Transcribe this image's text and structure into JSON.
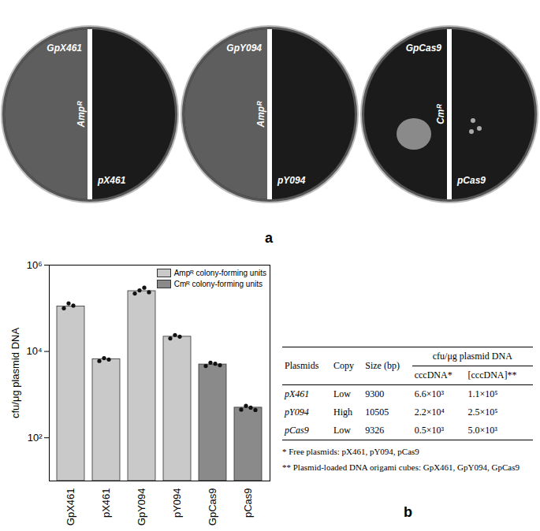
{
  "panel_a": {
    "label": "a",
    "plates": [
      {
        "top": "GpX461",
        "middle": "Ampᴿ",
        "bottom": "pX461"
      },
      {
        "top": "GpY094",
        "middle": "Ampᴿ",
        "bottom": "pY094"
      },
      {
        "top": "GpCas9",
        "middle": "Cmᴿ",
        "bottom": "pCas9"
      }
    ]
  },
  "chart_data": {
    "type": "bar",
    "y_label": "cfu/μg plasmid DNA",
    "categories": [
      "GpX461",
      "pX461",
      "GpY094",
      "pY094",
      "GpCas9",
      "pCas9"
    ],
    "series": [
      {
        "name": "Ampᴿ colony-forming units",
        "color": "#c9c9c9",
        "values": [
          110000,
          6600,
          250000,
          22000,
          null,
          null
        ],
        "replicates": [
          [
            100000,
            130000,
            115000
          ],
          [
            6000,
            7000,
            6500
          ],
          [
            220000,
            260000,
            300000,
            235000
          ],
          [
            20000,
            24000,
            22000
          ],
          null,
          null
        ]
      },
      {
        "name": "Cmᴿ colony-forming units",
        "color": "#8a8a8a",
        "values": [
          null,
          null,
          null,
          null,
          5000,
          500
        ],
        "replicates": [
          null,
          null,
          null,
          null,
          [
            4600,
            5500,
            5200,
            4800
          ],
          [
            450,
            550,
            500,
            440
          ]
        ]
      }
    ],
    "log": "y",
    "ylim": [
      10,
      1000000
    ],
    "yticks": [
      {
        "value": 100,
        "label": "10²"
      },
      {
        "value": 10000,
        "label": "10⁴"
      },
      {
        "value": 1000000,
        "label": "10⁶"
      }
    ],
    "legend": "top-right"
  },
  "table": {
    "header": [
      "Plasmids",
      "Copy",
      "Size (bp)",
      "cfu/μg plasmid DNA"
    ],
    "subheader": [
      "cccDNA*",
      "[cccDNA]**"
    ],
    "rows": [
      [
        "pX461",
        "Low",
        9300,
        "6.6×10³",
        "1.1×10⁵"
      ],
      [
        "pY094",
        "High",
        10505,
        "2.2×10⁴",
        "2.5×10⁵"
      ],
      [
        "pCas9",
        "Low",
        9326,
        "0.5×10³",
        "5.0×10³"
      ]
    ],
    "footnotes": [
      "* Free plasmids: pX461, pY094, pCas9",
      "** Plasmid-loaded DNA origami cubes: GpX461, GpY094, GpCas9"
    ]
  },
  "panel_b": {
    "label": "b"
  }
}
